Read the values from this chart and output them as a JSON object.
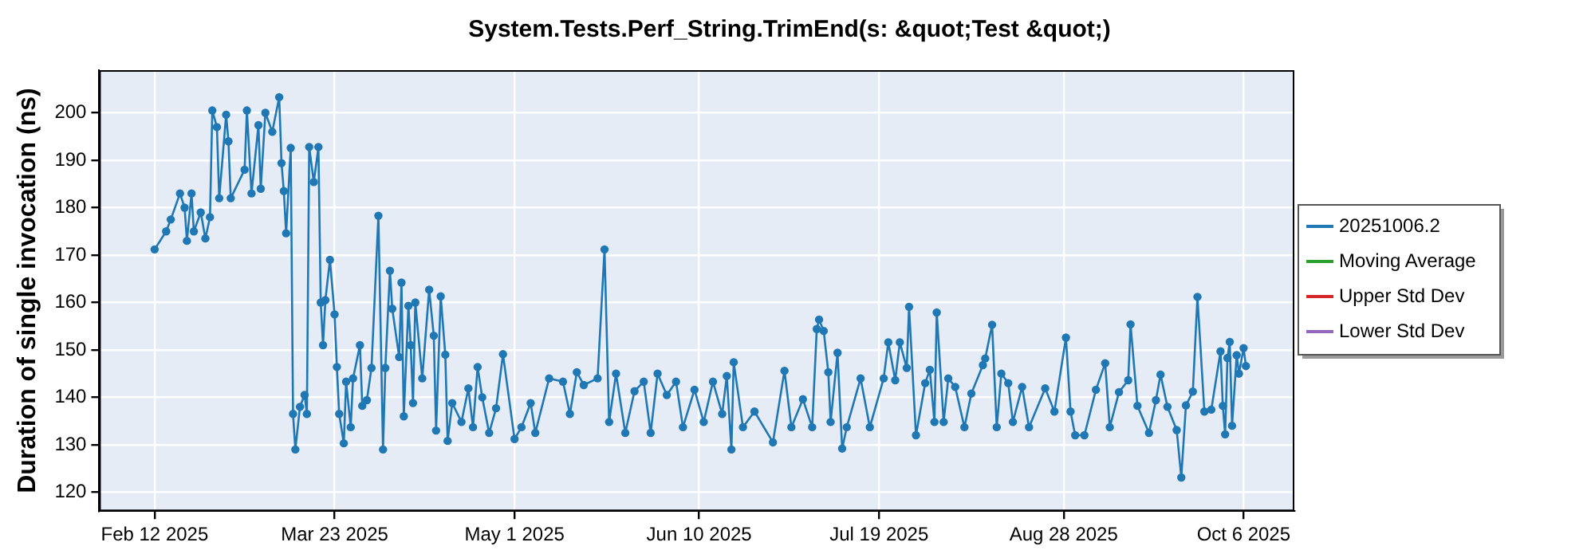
{
  "chart_data": {
    "type": "line",
    "title": "System.Tests.Perf_String.TrimEnd(s: &quot;Test &quot;)",
    "ylabel": "Duration of single invocation (ns)",
    "xlim": [
      "2025-01-31",
      "2025-10-17"
    ],
    "ylim": [
      116,
      209
    ],
    "xticks": [
      {
        "value": "2025-02-12",
        "label": "Feb 12 2025"
      },
      {
        "value": "2025-03-23",
        "label": "Mar 23 2025"
      },
      {
        "value": "2025-05-01",
        "label": "May 1 2025"
      },
      {
        "value": "2025-06-10",
        "label": "Jun 10 2025"
      },
      {
        "value": "2025-07-19",
        "label": "Jul 19 2025"
      },
      {
        "value": "2025-08-28",
        "label": "Aug 28 2025"
      },
      {
        "value": "2025-10-06",
        "label": "Oct 6 2025"
      }
    ],
    "yticks": [
      120,
      130,
      140,
      150,
      160,
      170,
      180,
      190,
      200
    ],
    "grid": true,
    "legend": "right",
    "marker": "circle",
    "line_style": "solid",
    "x": [
      "2025-02-12",
      "2025-02-14T12:00",
      "2025-02-15T12:00",
      "2025-02-17T12:00",
      "2025-02-18T12:00",
      "2025-02-19",
      "2025-02-20",
      "2025-02-20T12:00",
      "2025-02-22",
      "2025-02-23",
      "2025-02-24",
      "2025-02-24T12:00",
      "2025-02-25T12:00",
      "2025-02-26",
      "2025-02-27T12:00",
      "2025-02-28",
      "2025-02-28T12:00",
      "2025-03-03T12:00",
      "2025-03-04",
      "2025-03-05",
      "2025-03-06T12:00",
      "2025-03-07",
      "2025-03-08",
      "2025-03-09T12:00",
      "2025-03-11",
      "2025-03-11T12:00",
      "2025-03-12",
      "2025-03-12T12:00",
      "2025-03-13T12:00",
      "2025-03-14",
      "2025-03-14T12:00",
      "2025-03-15T12:00",
      "2025-03-16T12:00",
      "2025-03-17",
      "2025-03-17T12:00",
      "2025-03-18T12:00",
      "2025-03-19T12:00",
      "2025-03-20",
      "2025-03-20T12:00",
      "2025-03-21",
      "2025-03-22",
      "2025-03-23",
      "2025-03-23T12:00",
      "2025-03-24",
      "2025-03-25",
      "2025-03-25T12:00",
      "2025-03-26T12:00",
      "2025-03-27",
      "2025-03-28T12:00",
      "2025-03-29",
      "2025-03-30",
      "2025-03-31",
      "2025-04-01T12:00",
      "2025-04-02T12:00",
      "2025-04-03",
      "2025-04-04",
      "2025-04-04T12:00",
      "2025-04-06",
      "2025-04-06T12:00",
      "2025-04-07",
      "2025-04-08",
      "2025-04-08T12:00",
      "2025-04-09",
      "2025-04-09T12:00",
      "2025-04-11",
      "2025-04-12T12:00",
      "2025-04-13T12:00",
      "2025-04-14",
      "2025-04-15",
      "2025-04-16",
      "2025-04-16T12:00",
      "2025-04-17T12:00",
      "2025-04-19T12:00",
      "2025-04-21",
      "2025-04-22",
      "2025-04-23",
      "2025-04-24",
      "2025-04-25T12:00",
      "2025-04-27",
      "2025-04-28T12:00",
      "2025-05-01",
      "2025-05-02T12:00",
      "2025-05-04T12:00",
      "2025-05-05T12:00",
      "2025-05-08T12:00",
      "2025-05-11T12:00",
      "2025-05-13",
      "2025-05-14T12:00",
      "2025-05-16",
      "2025-05-19",
      "2025-05-20T12:00",
      "2025-05-21T12:00",
      "2025-05-23",
      "2025-05-25",
      "2025-05-27",
      "2025-05-29",
      "2025-05-30T12:00",
      "2025-06-01",
      "2025-06-03",
      "2025-06-05",
      "2025-06-06T12:00",
      "2025-06-09",
      "2025-06-11",
      "2025-06-13",
      "2025-06-15",
      "2025-06-16",
      "2025-06-17",
      "2025-06-17T12:00",
      "2025-06-19T12:00",
      "2025-06-22",
      "2025-06-26",
      "2025-06-28T12:00",
      "2025-06-30",
      "2025-07-02T12:00",
      "2025-07-04T12:00",
      "2025-07-05T12:00",
      "2025-07-06",
      "2025-07-07",
      "2025-07-08",
      "2025-07-08T12:00",
      "2025-07-10",
      "2025-07-11",
      "2025-07-12",
      "2025-07-15",
      "2025-07-17",
      "2025-07-20",
      "2025-07-21",
      "2025-07-22T12:00",
      "2025-07-23T12:00",
      "2025-07-25",
      "2025-07-25T12:00",
      "2025-07-27",
      "2025-07-29",
      "2025-07-30",
      "2025-07-31",
      "2025-07-31T12:00",
      "2025-08-02",
      "2025-08-03",
      "2025-08-04T12:00",
      "2025-08-06T12:00",
      "2025-08-08",
      "2025-08-10T12:00",
      "2025-08-11",
      "2025-08-12T12:00",
      "2025-08-13T12:00",
      "2025-08-14T12:00",
      "2025-08-16",
      "2025-08-17",
      "2025-08-19",
      "2025-08-20T12:00",
      "2025-08-24",
      "2025-08-26",
      "2025-08-28T12:00",
      "2025-08-29T12:00",
      "2025-08-30T12:00",
      "2025-09-01T12:00",
      "2025-09-04",
      "2025-09-06",
      "2025-09-07",
      "2025-09-09",
      "2025-09-11",
      "2025-09-11T12:00",
      "2025-09-13",
      "2025-09-15T12:00",
      "2025-09-17",
      "2025-09-18",
      "2025-09-19T12:00",
      "2025-09-21T12:00",
      "2025-09-22T12:00",
      "2025-09-23T12:00",
      "2025-09-25",
      "2025-09-26",
      "2025-09-27T12:00",
      "2025-09-29",
      "2025-10-01",
      "2025-10-01T12:00",
      "2025-10-02",
      "2025-10-02T12:00",
      "2025-10-03",
      "2025-10-03T12:00",
      "2025-10-04T12:00",
      "2025-10-05",
      "2025-10-06",
      "2025-10-06T12:00"
    ],
    "series": [
      {
        "name": "20251006.2",
        "color": "#1f77b4",
        "values": [
          171.2,
          175,
          177.5,
          183,
          180,
          173,
          183,
          175,
          179,
          173.5,
          178,
          200.5,
          197,
          182,
          199.6,
          194,
          182,
          188,
          200.5,
          183,
          197.4,
          184,
          200,
          196,
          203.3,
          189.4,
          183.5,
          174.6,
          192.6,
          136.5,
          129,
          138,
          140.5,
          136.5,
          192.8,
          185.4,
          192.8,
          160,
          151,
          160.5,
          169,
          157.5,
          146.4,
          136.5,
          130.3,
          143.3,
          133.7,
          144,
          151,
          138.2,
          139.4,
          146.2,
          178.3,
          129,
          146.2,
          166.7,
          158.7,
          148.5,
          164.2,
          136,
          159.3,
          151,
          138.8,
          160,
          144,
          162.7,
          153,
          133,
          161.3,
          149,
          130.8,
          138.8,
          134.8,
          141.9,
          133.7,
          146.4,
          140,
          132.5,
          137.7,
          149.1,
          131.2,
          133.7,
          138.8,
          132.5,
          144,
          143.3,
          136.5,
          145.3,
          142.6,
          144,
          171.2,
          134.8,
          145,
          132.5,
          141.3,
          143.3,
          132.5,
          145,
          140.5,
          143.3,
          133.7,
          141.6,
          134.8,
          143.3,
          136.5,
          144.5,
          129,
          147.4,
          133.7,
          137,
          130.5,
          145.6,
          133.7,
          139.6,
          133.7,
          154.4,
          156.4,
          154,
          145.3,
          134.8,
          149.4,
          129.2,
          133.7,
          144,
          133.7,
          144,
          151.6,
          143.6,
          151.6,
          146.2,
          159.1,
          132,
          143,
          145.8,
          134.8,
          157.9,
          134.8,
          144,
          142.2,
          133.7,
          140.8,
          146.8,
          148.2,
          155.3,
          133.7,
          145,
          143,
          134.8,
          142.2,
          133.7,
          141.9,
          137,
          152.6,
          137,
          132,
          132,
          141.6,
          147.2,
          133.7,
          141.1,
          143.6,
          155.4,
          138.2,
          132.5,
          139.4,
          144.8,
          138,
          133.1,
          123.1,
          138.3,
          141.2,
          161.2,
          137,
          137.4,
          149.7,
          138.2,
          132.2,
          148.3,
          151.7,
          134,
          148.9,
          145,
          150.4,
          146.6
        ]
      },
      {
        "name": "Moving Average",
        "color": "#2ca02c",
        "values": [
          null,
          null,
          null,
          null,
          null,
          null,
          null,
          null,
          null,
          null,
          null,
          null,
          null,
          null,
          null,
          null,
          null,
          null,
          null,
          null,
          null,
          null,
          null,
          null,
          null,
          null,
          null,
          null,
          null,
          null,
          null,
          null,
          null,
          null,
          null,
          null,
          null,
          null,
          null,
          null,
          null,
          null,
          null,
          null,
          null,
          null,
          null,
          null,
          null,
          null,
          null,
          null,
          null,
          null,
          null,
          null,
          null,
          null,
          null,
          null,
          null,
          null,
          null,
          null,
          null,
          null,
          null,
          null,
          null,
          null,
          null,
          null,
          null,
          null,
          null,
          null,
          null,
          null,
          null,
          null,
          null,
          null,
          null,
          null,
          null,
          null,
          null,
          null,
          null,
          null,
          null,
          null,
          null,
          null,
          null,
          null,
          null,
          null,
          null,
          null,
          null,
          null,
          null,
          null,
          null,
          null,
          null,
          null,
          null,
          null,
          null,
          null,
          null,
          null,
          null,
          null,
          null,
          null,
          null,
          null,
          null,
          null,
          null,
          null,
          null,
          null,
          null,
          null,
          null,
          null,
          null,
          null,
          null,
          null,
          null,
          null,
          null,
          null,
          null,
          null,
          null,
          null,
          null,
          null,
          null,
          null,
          null,
          null,
          null,
          null,
          null,
          null,
          null,
          null,
          null,
          null,
          null,
          null,
          null,
          null,
          null,
          null,
          null,
          null,
          null,
          null,
          null,
          null,
          null,
          null,
          null,
          null,
          null,
          null,
          null,
          null,
          null,
          null,
          null,
          null,
          null,
          null,
          null,
          null
        ]
      },
      {
        "name": "Upper Std Dev",
        "color": "#d62728",
        "values": [
          null,
          null,
          null,
          null,
          null,
          null,
          null,
          null,
          null,
          null,
          null,
          null,
          null,
          null,
          null,
          null,
          null,
          null,
          null,
          null,
          null,
          null,
          null,
          null,
          null,
          null,
          null,
          null,
          null,
          null,
          null,
          null,
          null,
          null,
          null,
          null,
          null,
          null,
          null,
          null,
          null,
          null,
          null,
          null,
          null,
          null,
          null,
          null,
          null,
          null,
          null,
          null,
          null,
          null,
          null,
          null,
          null,
          null,
          null,
          null,
          null,
          null,
          null,
          null,
          null,
          null,
          null,
          null,
          null,
          null,
          null,
          null,
          null,
          null,
          null,
          null,
          null,
          null,
          null,
          null,
          null,
          null,
          null,
          null,
          null,
          null,
          null,
          null,
          null,
          null,
          null,
          null,
          null,
          null,
          null,
          null,
          null,
          null,
          null,
          null,
          null,
          null,
          null,
          null,
          null,
          null,
          null,
          null,
          null,
          null,
          null,
          null,
          null,
          null,
          null,
          null,
          null,
          null,
          null,
          null,
          null,
          null,
          null,
          null,
          null,
          null,
          null,
          null,
          null,
          null,
          null,
          null,
          null,
          null,
          null,
          null,
          null,
          null,
          null,
          null,
          null,
          null,
          null,
          null,
          null,
          null,
          null,
          null,
          null,
          null,
          null,
          null,
          null,
          null,
          null,
          null,
          null,
          null,
          null,
          null,
          null,
          null,
          null,
          null,
          null,
          null,
          null,
          null,
          null,
          null,
          null,
          null,
          null,
          null,
          null,
          null,
          null,
          null,
          null,
          null,
          null,
          null,
          null,
          null
        ]
      },
      {
        "name": "Lower Std Dev",
        "color": "#9467bd",
        "values": [
          null,
          null,
          null,
          null,
          null,
          null,
          null,
          null,
          null,
          null,
          null,
          null,
          null,
          null,
          null,
          null,
          null,
          null,
          null,
          null,
          null,
          null,
          null,
          null,
          null,
          null,
          null,
          null,
          null,
          null,
          null,
          null,
          null,
          null,
          null,
          null,
          null,
          null,
          null,
          null,
          null,
          null,
          null,
          null,
          null,
          null,
          null,
          null,
          null,
          null,
          null,
          null,
          null,
          null,
          null,
          null,
          null,
          null,
          null,
          null,
          null,
          null,
          null,
          null,
          null,
          null,
          null,
          null,
          null,
          null,
          null,
          null,
          null,
          null,
          null,
          null,
          null,
          null,
          null,
          null,
          null,
          null,
          null,
          null,
          null,
          null,
          null,
          null,
          null,
          null,
          null,
          null,
          null,
          null,
          null,
          null,
          null,
          null,
          null,
          null,
          null,
          null,
          null,
          null,
          null,
          null,
          null,
          null,
          null,
          null,
          null,
          null,
          null,
          null,
          null,
          null,
          null,
          null,
          null,
          null,
          null,
          null,
          null,
          null,
          null,
          null,
          null,
          null,
          null,
          null,
          null,
          null,
          null,
          null,
          null,
          null,
          null,
          null,
          null,
          null,
          null,
          null,
          null,
          null,
          null,
          null,
          null,
          null,
          null,
          null,
          null,
          null,
          null,
          null,
          null,
          null,
          null,
          null,
          null,
          null,
          null,
          null,
          null,
          null,
          null,
          null,
          null,
          null,
          null,
          null,
          null,
          null,
          null,
          null,
          null,
          null,
          null,
          null,
          null,
          null,
          null,
          null,
          null,
          null
        ]
      }
    ]
  }
}
